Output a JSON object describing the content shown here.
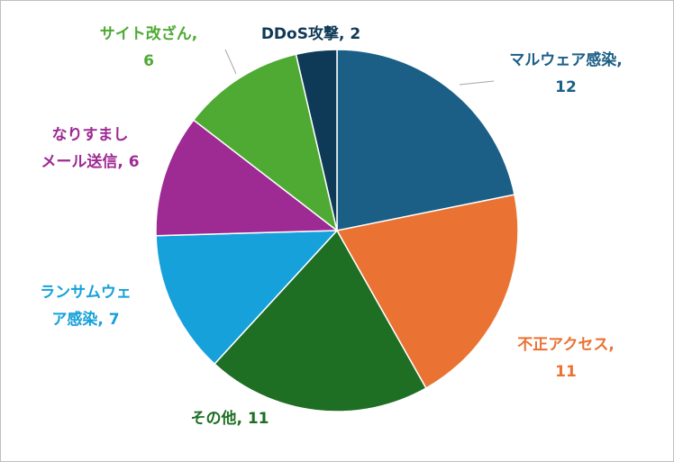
{
  "chart_data": {
    "type": "pie",
    "title": "",
    "slices": [
      {
        "name": "マルウェア感染",
        "value": 12,
        "color": "#1b5f86",
        "label_lines": [
          "マルウェア感染,",
          "12"
        ]
      },
      {
        "name": "不正アクセス",
        "value": 11,
        "color": "#ea7233",
        "label_lines": [
          "不正アクセス,",
          "11"
        ]
      },
      {
        "name": "その他",
        "value": 11,
        "color": "#1e6e24",
        "label_lines": [
          "その他, 11"
        ]
      },
      {
        "name": "ランサムウェア感染",
        "value": 7,
        "color": "#16a1db",
        "label_lines": [
          "ランサムウェ",
          "ア感染, 7"
        ]
      },
      {
        "name": "なりすましメール送信",
        "value": 6,
        "color": "#9e2a94",
        "label_lines": [
          "なりすまし",
          "メール送信, 6"
        ]
      },
      {
        "name": "サイト改ざん",
        "value": 6,
        "color": "#4eaa33",
        "label_lines": [
          "サイト改ざん,",
          "6"
        ]
      },
      {
        "name": "DDoS攻撃",
        "value": 2,
        "color": "#0f3a57",
        "label_lines": [
          "DDoS攻撃, 2"
        ]
      }
    ],
    "label_color_dark": "#0f3a57",
    "start_angle_deg": 0,
    "direction": "clockwise",
    "legend": "none"
  }
}
